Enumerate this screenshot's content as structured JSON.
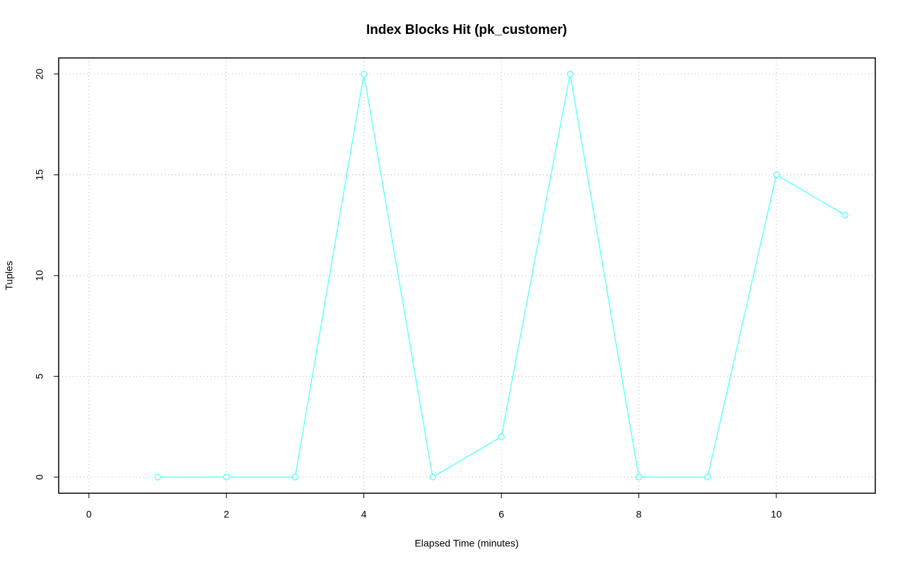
{
  "chart_data": {
    "type": "line",
    "title": "Index Blocks Hit (pk_customer)",
    "x_label": "Elapsed Time (minutes)",
    "y_label": "Tuples",
    "x": [
      1,
      2,
      3,
      4,
      5,
      6,
      7,
      8,
      9,
      10,
      11
    ],
    "series": [
      {
        "name": "pk_customer",
        "color": "#66ffff",
        "values": [
          0,
          0,
          0,
          20,
          0,
          2,
          20,
          0,
          0,
          15,
          13
        ]
      }
    ],
    "xlim": [
      -0.44,
      11.44
    ],
    "xticks": [
      0,
      2,
      4,
      6,
      8,
      10
    ],
    "ylim": [
      -0.8,
      20.8
    ],
    "yticks": [
      0,
      5,
      10,
      15,
      20
    ],
    "grid": true
  }
}
